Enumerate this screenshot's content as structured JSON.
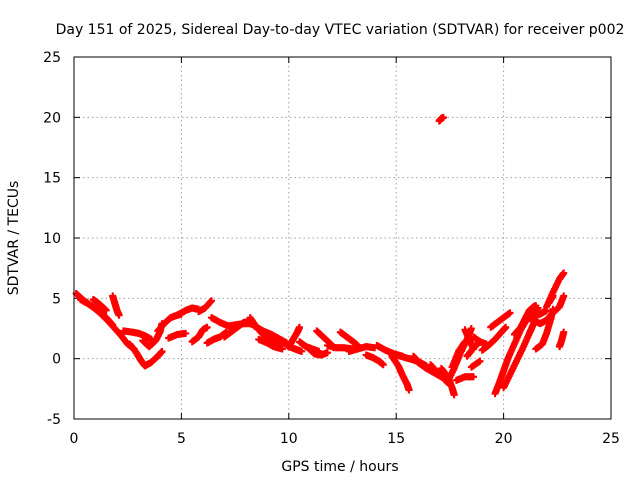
{
  "chart_data": {
    "type": "scatter",
    "title": "Day 151 of 2025, Sidereal Day-to-day VTEC variation (SDTVAR) for receiver p002",
    "xlabel": "GPS time / hours",
    "ylabel": "SDTVAR / TECUs",
    "xlim": [
      0,
      25
    ],
    "ylim": [
      -5,
      25
    ],
    "xticks": [
      "0",
      "5",
      "10",
      "15",
      "20",
      "25"
    ],
    "yticks": [
      "-5",
      "0",
      "5",
      "10",
      "15",
      "20",
      "25"
    ],
    "grid": true,
    "marker": "+",
    "series": [
      {
        "name": "SDTVAR",
        "color": "#ff0000",
        "tracks": [
          [
            [
              0.1,
              5.4
            ],
            [
              0.4,
              4.9
            ],
            [
              0.8,
              4.4
            ],
            [
              1.2,
              3.8
            ],
            [
              1.6,
              3.1
            ],
            [
              1.9,
              2.5
            ],
            [
              2.2,
              1.9
            ],
            [
              2.5,
              1.2
            ],
            [
              2.8,
              0.8
            ]
          ],
          [
            [
              0.3,
              4.9
            ],
            [
              0.7,
              4.5
            ],
            [
              1.1,
              4.0
            ],
            [
              1.5,
              3.4
            ],
            [
              1.8,
              2.8
            ]
          ],
          [
            [
              0.9,
              4.9
            ],
            [
              1.2,
              4.5
            ],
            [
              1.5,
              4.0
            ]
          ],
          [
            [
              1.8,
              5.2
            ],
            [
              1.9,
              4.6
            ],
            [
              2.0,
              4.0
            ],
            [
              2.1,
              3.6
            ]
          ],
          [
            [
              2.3,
              2.3
            ],
            [
              2.7,
              2.2
            ],
            [
              3.0,
              2.1
            ],
            [
              3.3,
              1.9
            ],
            [
              3.6,
              1.6
            ]
          ],
          [
            [
              2.6,
              1.2
            ],
            [
              2.9,
              0.5
            ],
            [
              3.1,
              -0.1
            ],
            [
              3.3,
              -0.6
            ],
            [
              3.6,
              -0.3
            ],
            [
              3.9,
              0.2
            ],
            [
              4.1,
              0.6
            ]
          ],
          [
            [
              3.2,
              1.5
            ],
            [
              3.5,
              1.0
            ],
            [
              3.8,
              1.5
            ],
            [
              4.0,
              2.2
            ],
            [
              4.1,
              2.9
            ]
          ],
          [
            [
              3.9,
              2.3
            ],
            [
              4.2,
              2.9
            ],
            [
              4.5,
              3.4
            ],
            [
              4.8,
              3.6
            ],
            [
              5.0,
              3.7
            ]
          ],
          [
            [
              4.4,
              1.7
            ],
            [
              4.8,
              2.0
            ],
            [
              5.2,
              2.1
            ]
          ],
          [
            [
              4.8,
              3.6
            ],
            [
              5.2,
              4.0
            ],
            [
              5.5,
              4.2
            ],
            [
              5.8,
              4.1
            ]
          ],
          [
            [
              5.5,
              1.4
            ],
            [
              5.8,
              1.8
            ],
            [
              6.0,
              2.4
            ],
            [
              6.2,
              2.6
            ]
          ],
          [
            [
              5.8,
              3.9
            ],
            [
              6.1,
              4.2
            ],
            [
              6.4,
              4.8
            ]
          ],
          [
            [
              6.2,
              1.3
            ],
            [
              6.5,
              1.6
            ],
            [
              6.8,
              1.8
            ],
            [
              7.1,
              2.2
            ]
          ],
          [
            [
              6.4,
              3.4
            ],
            [
              6.8,
              3.0
            ],
            [
              7.2,
              2.7
            ],
            [
              7.5,
              2.8
            ],
            [
              7.9,
              2.9
            ],
            [
              8.2,
              2.9
            ],
            [
              8.5,
              2.7
            ]
          ],
          [
            [
              7.0,
              1.8
            ],
            [
              7.3,
              2.2
            ],
            [
              7.6,
              2.6
            ],
            [
              7.9,
              3.0
            ],
            [
              8.2,
              3.1
            ]
          ],
          [
            [
              8.2,
              3.4
            ],
            [
              8.5,
              2.6
            ],
            [
              8.8,
              2.0
            ],
            [
              9.1,
              1.6
            ],
            [
              9.4,
              1.3
            ],
            [
              9.7,
              1.2
            ]
          ],
          [
            [
              8.4,
              2.7
            ],
            [
              8.8,
              2.3
            ],
            [
              9.2,
              2.0
            ],
            [
              9.6,
              1.6
            ],
            [
              9.9,
              1.3
            ]
          ],
          [
            [
              8.6,
              1.6
            ],
            [
              9.0,
              1.3
            ],
            [
              9.3,
              1.0
            ],
            [
              9.7,
              0.8
            ]
          ],
          [
            [
              9.4,
              1.8
            ],
            [
              9.7,
              1.4
            ],
            [
              10.0,
              1.0
            ],
            [
              10.3,
              0.8
            ],
            [
              10.6,
              0.6
            ]
          ],
          [
            [
              10.0,
              1.0
            ],
            [
              10.2,
              1.6
            ],
            [
              10.4,
              2.2
            ],
            [
              10.5,
              2.6
            ]
          ],
          [
            [
              10.5,
              1.4
            ],
            [
              10.8,
              1.0
            ],
            [
              11.1,
              0.8
            ],
            [
              11.4,
              0.6
            ]
          ],
          [
            [
              10.9,
              0.9
            ],
            [
              11.2,
              0.4
            ],
            [
              11.5,
              0.3
            ],
            [
              11.8,
              0.5
            ]
          ],
          [
            [
              11.3,
              2.3
            ],
            [
              11.6,
              1.8
            ],
            [
              11.9,
              1.3
            ],
            [
              12.1,
              0.9
            ]
          ],
          [
            [
              11.8,
              1.1
            ],
            [
              12.2,
              0.9
            ],
            [
              12.6,
              0.9
            ],
            [
              13.0,
              0.8
            ]
          ],
          [
            [
              12.4,
              2.2
            ],
            [
              12.7,
              1.8
            ],
            [
              13.0,
              1.4
            ],
            [
              13.2,
              1.1
            ]
          ],
          [
            [
              12.8,
              0.6
            ],
            [
              13.2,
              0.8
            ],
            [
              13.6,
              1.0
            ],
            [
              14.0,
              0.9
            ]
          ],
          [
            [
              13.6,
              0.3
            ],
            [
              13.9,
              0.1
            ],
            [
              14.2,
              -0.2
            ],
            [
              14.4,
              -0.5
            ]
          ],
          [
            [
              14.1,
              1.1
            ],
            [
              14.5,
              0.7
            ],
            [
              14.9,
              0.4
            ],
            [
              15.3,
              0.2
            ]
          ],
          [
            [
              14.8,
              0.2
            ],
            [
              15.1,
              -0.6
            ],
            [
              15.3,
              -1.4
            ],
            [
              15.5,
              -2.1
            ],
            [
              15.6,
              -2.6
            ]
          ],
          [
            [
              15.0,
              0.3
            ],
            [
              15.4,
              0.1
            ],
            [
              15.8,
              -0.1
            ],
            [
              16.1,
              -0.3
            ],
            [
              16.4,
              -0.6
            ]
          ],
          [
            [
              15.8,
              0.2
            ],
            [
              16.0,
              -0.2
            ],
            [
              16.2,
              -0.5
            ],
            [
              16.4,
              -0.6
            ]
          ],
          [
            [
              16.0,
              -0.3
            ],
            [
              16.4,
              -0.8
            ],
            [
              16.8,
              -1.2
            ],
            [
              17.1,
              -1.5
            ],
            [
              17.3,
              -1.7
            ]
          ],
          [
            [
              16.6,
              -0.5
            ],
            [
              16.9,
              -1.1
            ],
            [
              17.2,
              -1.6
            ],
            [
              17.4,
              -2.0
            ]
          ],
          [
            [
              17.1,
              -0.8
            ],
            [
              17.4,
              -1.5
            ],
            [
              17.6,
              -2.4
            ],
            [
              17.7,
              -3.0
            ]
          ],
          [
            [
              17.4,
              -1.9
            ],
            [
              17.7,
              -0.8
            ],
            [
              18.0,
              0.5
            ],
            [
              18.3,
              1.6
            ],
            [
              18.5,
              2.5
            ]
          ],
          [
            [
              17.6,
              -0.7
            ],
            [
              17.9,
              0.6
            ],
            [
              18.2,
              1.4
            ]
          ],
          [
            [
              17.8,
              -1.8
            ],
            [
              18.2,
              -1.5
            ],
            [
              18.6,
              -1.5
            ]
          ],
          [
            [
              18.2,
              2.4
            ],
            [
              18.4,
              1.6
            ],
            [
              18.6,
              0.8
            ]
          ],
          [
            [
              18.3,
              0.2
            ],
            [
              18.6,
              0.9
            ],
            [
              18.9,
              1.4
            ]
          ],
          [
            [
              18.6,
              1.8
            ],
            [
              18.9,
              1.4
            ],
            [
              19.2,
              1.2
            ]
          ],
          [
            [
              18.5,
              -0.7
            ],
            [
              18.9,
              -0.2
            ]
          ],
          [
            [
              19.0,
              0.7
            ],
            [
              19.3,
              1.1
            ],
            [
              19.6,
              1.6
            ],
            [
              19.9,
              2.2
            ],
            [
              20.1,
              2.6
            ]
          ],
          [
            [
              19.4,
              2.6
            ],
            [
              19.7,
              3.0
            ],
            [
              20.0,
              3.4
            ],
            [
              20.3,
              3.8
            ]
          ],
          [
            [
              19.6,
              -2.9
            ],
            [
              19.8,
              -2.0
            ],
            [
              20.0,
              -1.0
            ],
            [
              20.2,
              0.0
            ],
            [
              20.5,
              1.2
            ],
            [
              20.8,
              2.4
            ],
            [
              21.1,
              3.3
            ],
            [
              21.4,
              3.9
            ],
            [
              21.6,
              4.2
            ]
          ],
          [
            [
              20.0,
              -2.4
            ],
            [
              20.3,
              -1.3
            ],
            [
              20.6,
              -0.2
            ],
            [
              20.9,
              0.9
            ],
            [
              21.2,
              2.1
            ],
            [
              21.4,
              2.9
            ]
          ],
          [
            [
              20.5,
              2.0
            ],
            [
              20.8,
              2.6
            ],
            [
              21.0,
              3.3
            ],
            [
              21.2,
              4.0
            ],
            [
              21.4,
              4.3
            ],
            [
              21.5,
              4.4
            ]
          ],
          [
            [
              21.3,
              3.1
            ],
            [
              21.5,
              3.6
            ],
            [
              21.7,
              3.7
            ],
            [
              21.9,
              3.9
            ],
            [
              22.0,
              4.0
            ]
          ],
          [
            [
              21.4,
              3.2
            ],
            [
              21.7,
              2.9
            ],
            [
              22.0,
              3.2
            ],
            [
              22.3,
              3.8
            ],
            [
              22.6,
              4.3
            ],
            [
              22.8,
              5.2
            ]
          ],
          [
            [
              21.5,
              0.8
            ],
            [
              21.8,
              1.2
            ],
            [
              22.0,
              2.1
            ],
            [
              22.2,
              3.3
            ],
            [
              22.3,
              4.1
            ]
          ],
          [
            [
              22.0,
              4.3
            ],
            [
              22.3,
              5.5
            ],
            [
              22.6,
              6.6
            ],
            [
              22.8,
              7.1
            ]
          ],
          [
            [
              22.1,
              4.6
            ],
            [
              22.3,
              5.2
            ]
          ],
          [
            [
              22.6,
              1.0
            ],
            [
              22.7,
              1.5
            ],
            [
              22.8,
              2.2
            ]
          ],
          [
            [
              17.0,
              19.7
            ],
            [
              17.1,
              19.9
            ],
            [
              17.2,
              20.0
            ]
          ]
        ]
      }
    ]
  }
}
